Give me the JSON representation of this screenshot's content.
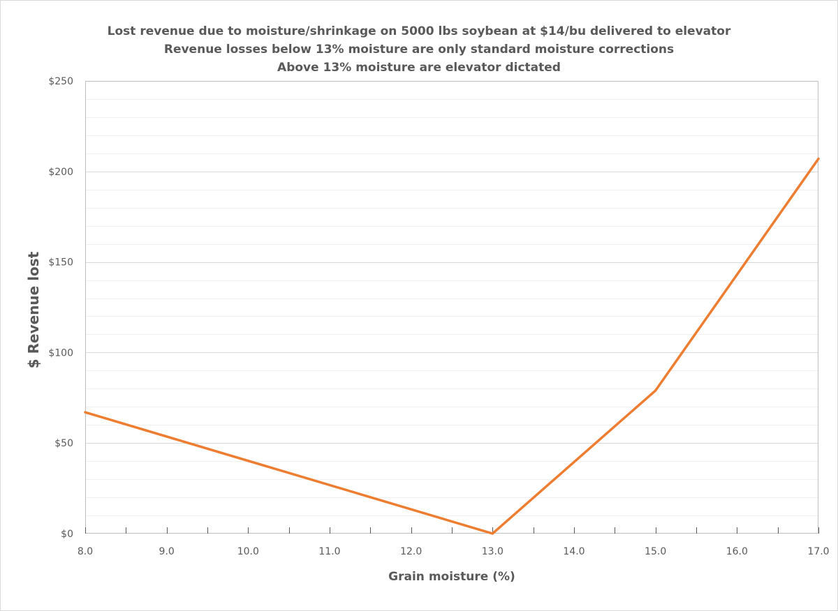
{
  "chart_data": {
    "type": "line",
    "title_lines": [
      "Lost revenue due to moisture/shrinkage on 5000 lbs soybean at $14/bu delivered to elevator",
      "Revenue losses below 13% moisture are only standard moisture corrections",
      "Above 13% moisture are elevator dictated"
    ],
    "xlabel": "Grain moisture (%)",
    "ylabel": "$ Revenue lost",
    "xlim": [
      8,
      17
    ],
    "ylim": [
      0,
      250
    ],
    "x_ticks": [
      8,
      9,
      10,
      11,
      12,
      13,
      14,
      15,
      16,
      17
    ],
    "x_tick_labels": [
      "8.0",
      "9.0",
      "10.0",
      "11.0",
      "12.0",
      "13.0",
      "14.0",
      "15.0",
      "16.0",
      "17.0"
    ],
    "y_ticks": [
      0,
      50,
      100,
      150,
      200,
      250
    ],
    "y_tick_labels": [
      "$0",
      "$50",
      "$100",
      "$150",
      "$200",
      "$250"
    ],
    "grid": "horizontal major and minor gridlines",
    "legend": "none",
    "series": [
      {
        "color": "#ED7D31",
        "points": [
          {
            "x": 8,
            "y": 67
          },
          {
            "x": 13,
            "y": 0
          },
          {
            "x": 15,
            "y": 79
          },
          {
            "x": 17,
            "y": 207
          }
        ]
      }
    ]
  }
}
